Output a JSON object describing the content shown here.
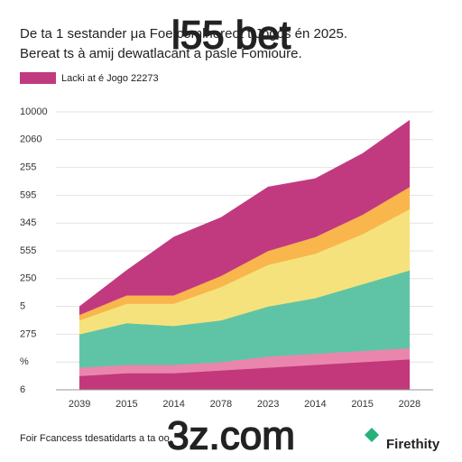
{
  "chart_data": {
    "type": "area",
    "title": "De ta 1 sestander μa Foe comlhoreot t Jogos én 2025.",
    "subtitle": "Bereat ts à amij dewatlacant a pasle Fomioure.",
    "watermark": "l55 bet",
    "watermark_bottom": "3z.com",
    "footer": "Foir Fcancess tdesatidarts a ta oo.",
    "brand": "Firethity",
    "categories": [
      "2039",
      "2015",
      "2014",
      "2078",
      "2023",
      "2014",
      "2015",
      "2028"
    ],
    "series": [
      {
        "color": "#c2387a",
        "values": [
          0.5,
          0.6,
          0.6,
          0.7,
          0.8,
          0.9,
          1.0,
          1.1
        ]
      },
      {
        "color": "#ea86ad",
        "values": [
          0.3,
          0.3,
          0.3,
          0.3,
          0.4,
          0.4,
          0.4,
          0.4
        ]
      },
      {
        "color": "#5fc4a6",
        "values": [
          1.2,
          1.5,
          1.4,
          1.5,
          1.8,
          2.0,
          2.4,
          2.8
        ]
      },
      {
        "color": "#f6e27c",
        "values": [
          0.5,
          0.7,
          0.8,
          1.2,
          1.5,
          1.6,
          1.8,
          2.2
        ]
      },
      {
        "color": "#f8b64c",
        "values": [
          0.2,
          0.3,
          0.3,
          0.4,
          0.5,
          0.6,
          0.7,
          0.8
        ]
      },
      {
        "name": "Lacki at é Jogo 22273",
        "color": "#c13a80",
        "values": [
          0.3,
          0.9,
          2.1,
          2.1,
          2.3,
          2.1,
          2.2,
          2.4
        ]
      }
    ],
    "ylim": [
      0,
      10
    ],
    "yticks": [
      {
        "value": 0,
        "label": "6"
      },
      {
        "value": 1,
        "label": "%"
      },
      {
        "value": 2,
        "label": "275"
      },
      {
        "value": 3,
        "label": "5"
      },
      {
        "value": 4,
        "label": "250"
      },
      {
        "value": 5,
        "label": "555"
      },
      {
        "value": 6,
        "label": "345"
      },
      {
        "value": 7,
        "label": "595"
      },
      {
        "value": 8,
        "label": "255"
      },
      {
        "value": 9,
        "label": "2060"
      },
      {
        "value": 10,
        "label": "10000"
      }
    ],
    "grid": true
  }
}
